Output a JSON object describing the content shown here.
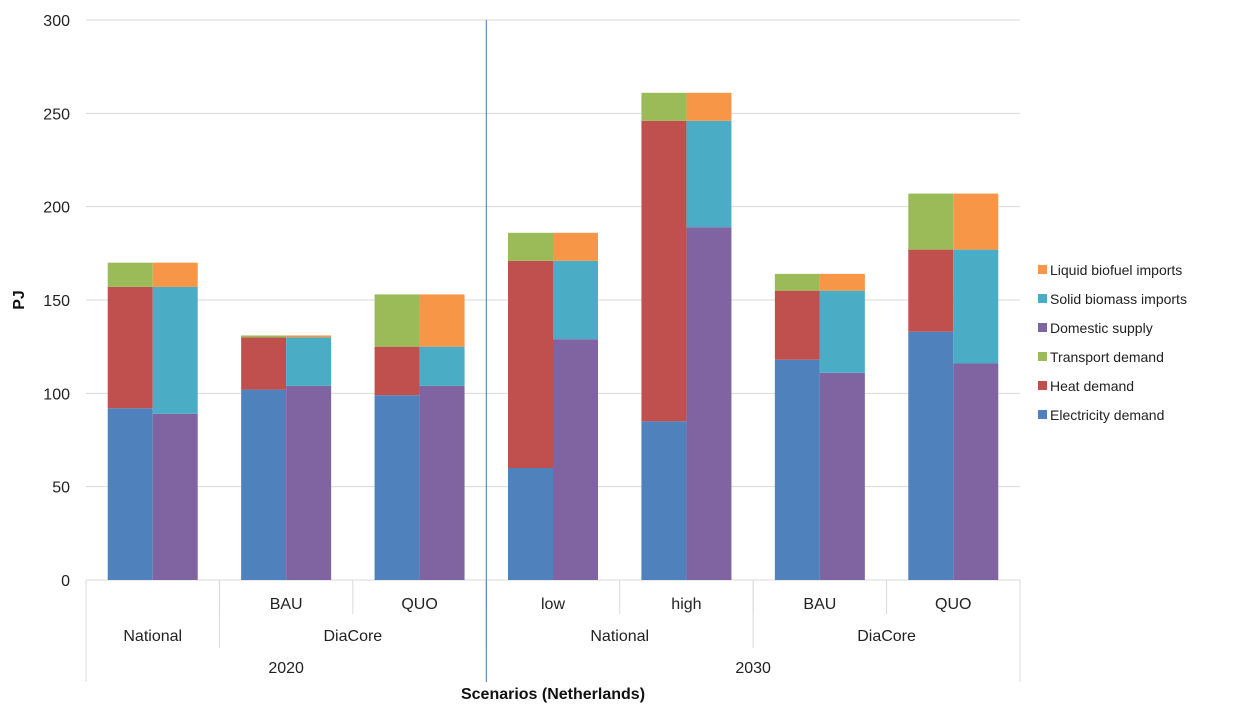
{
  "chart_data": {
    "type": "stacked-bar",
    "ylabel": "PJ",
    "xlabel": "Scenarios (Netherlands)",
    "ylim": [
      0,
      300
    ],
    "yticks": [
      0,
      50,
      100,
      150,
      200,
      250,
      300
    ],
    "grid": true,
    "legend_position": "right",
    "colors": {
      "Electricity demand": "#4f81bd",
      "Heat demand": "#c0504d",
      "Transport demand": "#9bbb59",
      "Domestic supply": "#8064a2",
      "Solid biomass imports": "#4bacc6",
      "Liquid biofuel imports": "#f79646"
    },
    "legend": [
      "Liquid biofuel imports",
      "Solid biomass imports",
      "Domestic supply",
      "Transport demand",
      "Heat demand",
      "Electricity demand"
    ],
    "x_level1": [
      "",
      "BAU",
      "QUO",
      "low",
      "high",
      "BAU",
      "QUO"
    ],
    "x_level2": [
      {
        "label": "National",
        "span": 1
      },
      {
        "label": "DiaCore",
        "span": 2
      },
      {
        "label": "National",
        "span": 2
      },
      {
        "label": "DiaCore",
        "span": 2
      }
    ],
    "x_level3": [
      {
        "label": "2020",
        "span": 3
      },
      {
        "label": "2030",
        "span": 4
      }
    ],
    "demand_series": [
      {
        "name": "Electricity demand",
        "values": [
          92,
          102,
          99,
          60,
          85,
          118,
          133
        ]
      },
      {
        "name": "Heat demand",
        "values": [
          65,
          28,
          26,
          111,
          161,
          37,
          44
        ]
      },
      {
        "name": "Transport demand",
        "values": [
          13,
          1,
          28,
          15,
          15,
          9,
          30
        ]
      }
    ],
    "supply_series": [
      {
        "name": "Domestic supply",
        "values": [
          89,
          104,
          104,
          129,
          189,
          111,
          116
        ]
      },
      {
        "name": "Solid biomass imports",
        "values": [
          68,
          26,
          21,
          42,
          57,
          44,
          61
        ]
      },
      {
        "name": "Liquid biofuel imports",
        "values": [
          13,
          1,
          28,
          15,
          15,
          9,
          30
        ]
      }
    ]
  }
}
